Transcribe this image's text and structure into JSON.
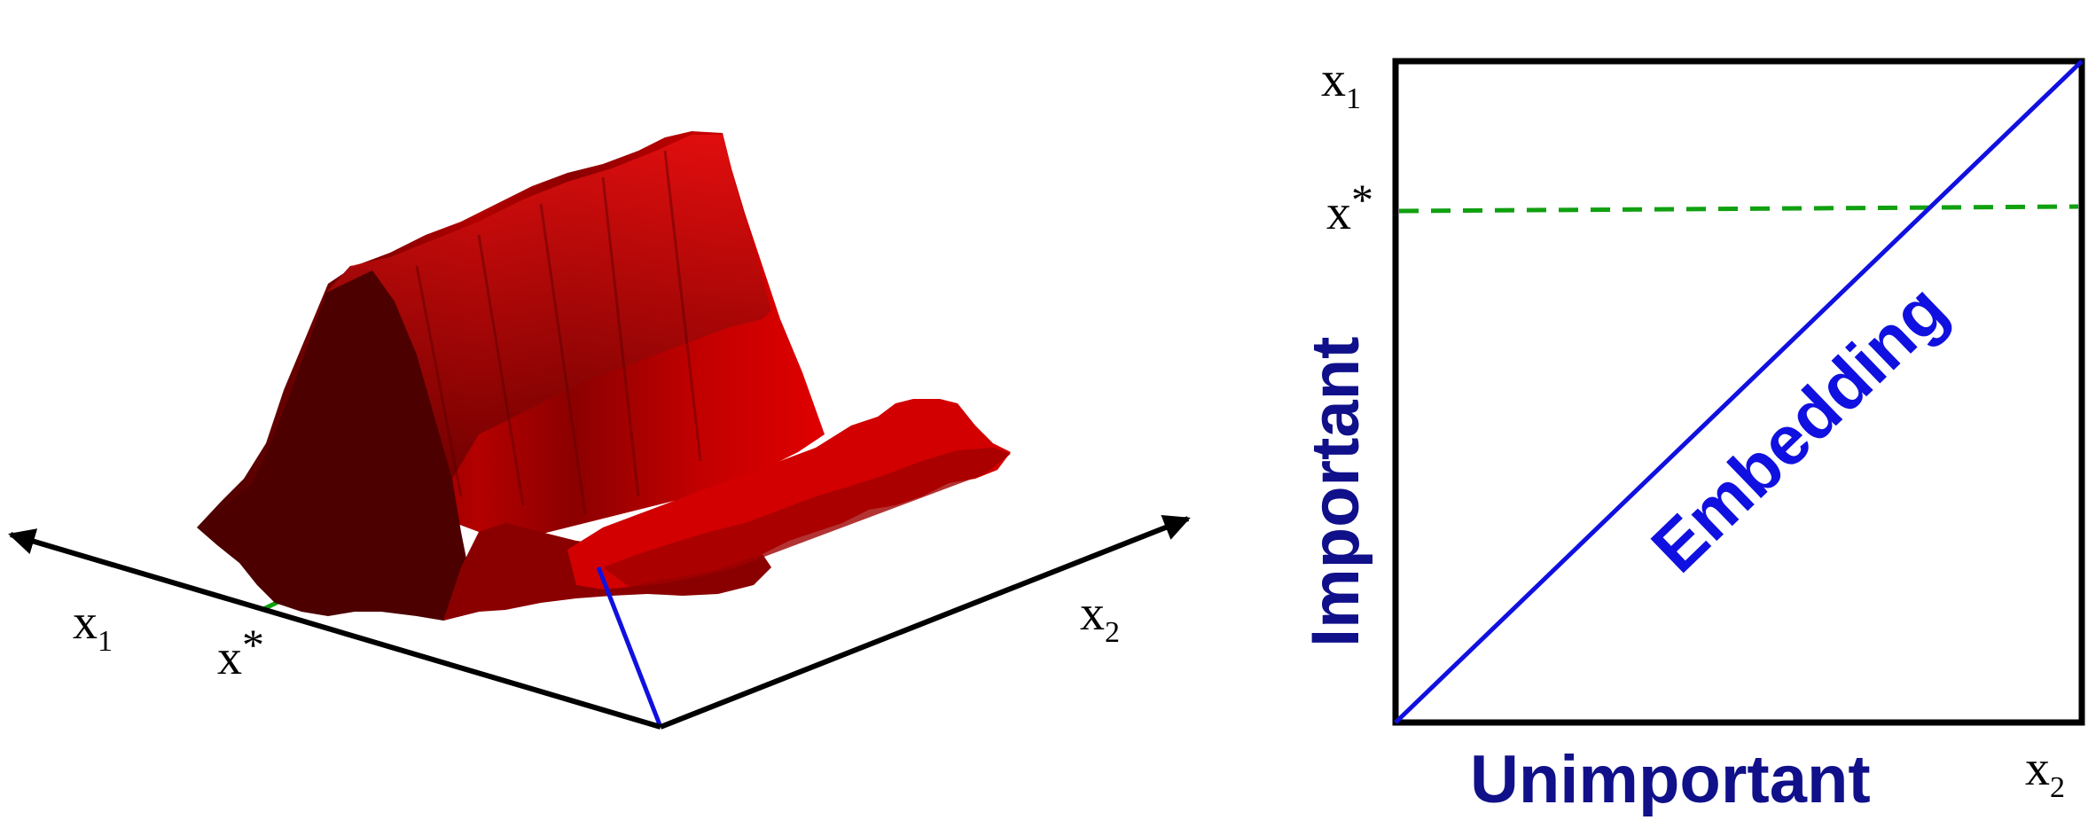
{
  "left_panel": {
    "axis_x1": {
      "base": "x",
      "sub": "1"
    },
    "axis_x2": {
      "base": "x",
      "sub": "2"
    },
    "xstar": {
      "base": "x",
      "sup": "*"
    },
    "surface_color": "#b00000",
    "axis_color": "#000000",
    "embedding_color": "#1010e0",
    "dashed_color": "#10a010"
  },
  "right_panel": {
    "axis_x1": {
      "base": "x",
      "sub": "1"
    },
    "axis_x2": {
      "base": "x",
      "sub": "2"
    },
    "xstar": {
      "base": "x",
      "sup": "*"
    },
    "important_label": "Important",
    "unimportant_label": "Unimportant",
    "embedding_label": "Embedding",
    "label_color": "#10108a",
    "embedding_color": "#1010e0",
    "dashed_color": "#10a010"
  }
}
